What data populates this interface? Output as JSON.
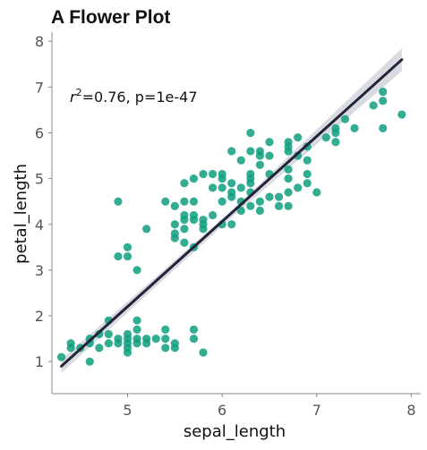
{
  "chart_data": {
    "type": "scatter",
    "title": "A Flower Plot",
    "xlabel": "sepal_length",
    "ylabel": "petal_length",
    "xlim": [
      4.2,
      8.1
    ],
    "ylim": [
      0.3,
      8.2
    ],
    "xticks": [
      5,
      6,
      7,
      8
    ],
    "yticks": [
      1,
      2,
      3,
      4,
      5,
      6,
      7,
      8
    ],
    "grid": false,
    "annotation": {
      "var": "r",
      "sup": "2",
      "rest": "=0.76, p=1e-47"
    },
    "colors": {
      "points": "#0f9f7f",
      "regression_line": "#23233a",
      "confidence_band": "#d0d2d9",
      "axis": "#888888"
    },
    "regression": {
      "x": [
        4.3,
        7.9
      ],
      "y": [
        0.9,
        7.6
      ]
    },
    "confidence_band": {
      "x": [
        4.3,
        6.1,
        7.9
      ],
      "upper": [
        1.05,
        4.3,
        7.85
      ],
      "lower": [
        0.75,
        4.15,
        7.35
      ]
    },
    "points": [
      {
        "x": 4.3,
        "y": 1.1
      },
      {
        "x": 4.4,
        "y": 1.3
      },
      {
        "x": 4.4,
        "y": 1.4
      },
      {
        "x": 4.5,
        "y": 1.3
      },
      {
        "x": 4.6,
        "y": 1.4
      },
      {
        "x": 4.6,
        "y": 1.5
      },
      {
        "x": 4.6,
        "y": 1.0
      },
      {
        "x": 4.7,
        "y": 1.3
      },
      {
        "x": 4.7,
        "y": 1.6
      },
      {
        "x": 4.8,
        "y": 1.4
      },
      {
        "x": 4.8,
        "y": 1.6
      },
      {
        "x": 4.8,
        "y": 1.9
      },
      {
        "x": 4.9,
        "y": 1.4
      },
      {
        "x": 4.9,
        "y": 1.5
      },
      {
        "x": 5.0,
        "y": 1.2
      },
      {
        "x": 5.0,
        "y": 1.3
      },
      {
        "x": 5.0,
        "y": 1.4
      },
      {
        "x": 5.0,
        "y": 1.5
      },
      {
        "x": 5.0,
        "y": 1.6
      },
      {
        "x": 5.1,
        "y": 1.4
      },
      {
        "x": 5.1,
        "y": 1.5
      },
      {
        "x": 5.1,
        "y": 1.7
      },
      {
        "x": 5.1,
        "y": 1.9
      },
      {
        "x": 5.2,
        "y": 1.4
      },
      {
        "x": 5.2,
        "y": 1.5
      },
      {
        "x": 5.3,
        "y": 1.5
      },
      {
        "x": 5.4,
        "y": 1.3
      },
      {
        "x": 5.4,
        "y": 1.5
      },
      {
        "x": 5.4,
        "y": 1.7
      },
      {
        "x": 5.5,
        "y": 1.3
      },
      {
        "x": 5.5,
        "y": 1.4
      },
      {
        "x": 5.7,
        "y": 1.5
      },
      {
        "x": 5.7,
        "y": 1.7
      },
      {
        "x": 5.8,
        "y": 1.2
      },
      {
        "x": 4.9,
        "y": 4.5
      },
      {
        "x": 4.9,
        "y": 3.3
      },
      {
        "x": 5.0,
        "y": 3.3
      },
      {
        "x": 5.0,
        "y": 3.5
      },
      {
        "x": 5.1,
        "y": 3.0
      },
      {
        "x": 5.2,
        "y": 3.9
      },
      {
        "x": 5.4,
        "y": 4.5
      },
      {
        "x": 5.5,
        "y": 3.7
      },
      {
        "x": 5.5,
        "y": 3.8
      },
      {
        "x": 5.5,
        "y": 4.0
      },
      {
        "x": 5.5,
        "y": 4.4
      },
      {
        "x": 5.6,
        "y": 3.6
      },
      {
        "x": 5.6,
        "y": 3.9
      },
      {
        "x": 5.6,
        "y": 4.1
      },
      {
        "x": 5.6,
        "y": 4.2
      },
      {
        "x": 5.6,
        "y": 4.5
      },
      {
        "x": 5.6,
        "y": 4.9
      },
      {
        "x": 5.7,
        "y": 3.5
      },
      {
        "x": 5.7,
        "y": 4.1
      },
      {
        "x": 5.7,
        "y": 4.2
      },
      {
        "x": 5.7,
        "y": 4.5
      },
      {
        "x": 5.7,
        "y": 5.0
      },
      {
        "x": 5.8,
        "y": 3.9
      },
      {
        "x": 5.8,
        "y": 4.0
      },
      {
        "x": 5.8,
        "y": 4.1
      },
      {
        "x": 5.8,
        "y": 5.1
      },
      {
        "x": 5.9,
        "y": 4.2
      },
      {
        "x": 5.9,
        "y": 4.8
      },
      {
        "x": 5.9,
        "y": 5.1
      },
      {
        "x": 6.0,
        "y": 4.0
      },
      {
        "x": 6.0,
        "y": 4.5
      },
      {
        "x": 6.0,
        "y": 4.8
      },
      {
        "x": 6.0,
        "y": 5.0
      },
      {
        "x": 6.0,
        "y": 5.1
      },
      {
        "x": 6.1,
        "y": 4.0
      },
      {
        "x": 6.1,
        "y": 4.6
      },
      {
        "x": 6.1,
        "y": 4.7
      },
      {
        "x": 6.1,
        "y": 4.9
      },
      {
        "x": 6.1,
        "y": 5.6
      },
      {
        "x": 6.2,
        "y": 4.3
      },
      {
        "x": 6.2,
        "y": 4.5
      },
      {
        "x": 6.2,
        "y": 4.8
      },
      {
        "x": 6.2,
        "y": 5.4
      },
      {
        "x": 6.3,
        "y": 4.4
      },
      {
        "x": 6.3,
        "y": 4.7
      },
      {
        "x": 6.3,
        "y": 4.9
      },
      {
        "x": 6.3,
        "y": 5.0
      },
      {
        "x": 6.3,
        "y": 5.1
      },
      {
        "x": 6.3,
        "y": 5.6
      },
      {
        "x": 6.3,
        "y": 6.0
      },
      {
        "x": 6.4,
        "y": 4.3
      },
      {
        "x": 6.4,
        "y": 4.5
      },
      {
        "x": 6.4,
        "y": 5.3
      },
      {
        "x": 6.4,
        "y": 5.5
      },
      {
        "x": 6.4,
        "y": 5.6
      },
      {
        "x": 6.5,
        "y": 4.6
      },
      {
        "x": 6.5,
        "y": 5.1
      },
      {
        "x": 6.5,
        "y": 5.5
      },
      {
        "x": 6.5,
        "y": 5.8
      },
      {
        "x": 6.6,
        "y": 4.4
      },
      {
        "x": 6.6,
        "y": 4.6
      },
      {
        "x": 6.7,
        "y": 4.4
      },
      {
        "x": 6.7,
        "y": 4.7
      },
      {
        "x": 6.7,
        "y": 5.0
      },
      {
        "x": 6.7,
        "y": 5.2
      },
      {
        "x": 6.7,
        "y": 5.6
      },
      {
        "x": 6.7,
        "y": 5.7
      },
      {
        "x": 6.7,
        "y": 5.8
      },
      {
        "x": 6.8,
        "y": 4.8
      },
      {
        "x": 6.8,
        "y": 5.5
      },
      {
        "x": 6.8,
        "y": 5.9
      },
      {
        "x": 6.9,
        "y": 4.9
      },
      {
        "x": 6.9,
        "y": 5.1
      },
      {
        "x": 6.9,
        "y": 5.4
      },
      {
        "x": 6.9,
        "y": 5.7
      },
      {
        "x": 7.0,
        "y": 4.7
      },
      {
        "x": 7.1,
        "y": 5.9
      },
      {
        "x": 7.2,
        "y": 5.8
      },
      {
        "x": 7.2,
        "y": 6.0
      },
      {
        "x": 7.2,
        "y": 6.1
      },
      {
        "x": 7.3,
        "y": 6.3
      },
      {
        "x": 7.4,
        "y": 6.1
      },
      {
        "x": 7.6,
        "y": 6.6
      },
      {
        "x": 7.7,
        "y": 6.1
      },
      {
        "x": 7.7,
        "y": 6.7
      },
      {
        "x": 7.7,
        "y": 6.9
      },
      {
        "x": 7.9,
        "y": 6.4
      }
    ]
  }
}
